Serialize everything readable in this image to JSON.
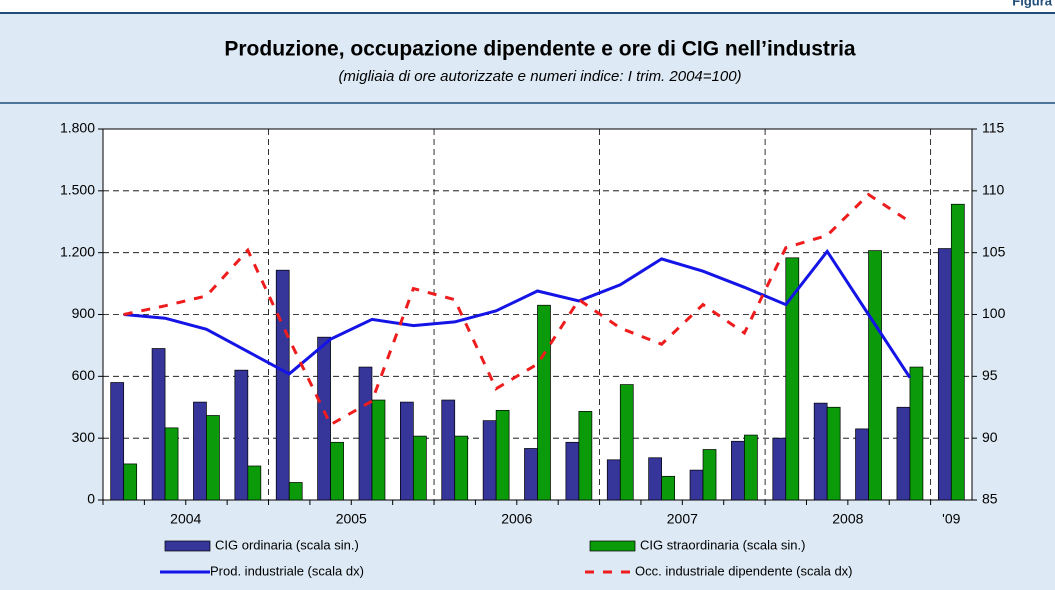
{
  "figure_label": "Figura",
  "chart_data": {
    "type": "bar_line",
    "title": "Produzione, occupazione dipendente e ore di CIG nell’industria",
    "subtitle": "(migliaia di ore autorizzate e numeri indice: I trim. 2004=100)",
    "categories": [
      null,
      null,
      null,
      null,
      null,
      null,
      null,
      null,
      null,
      null,
      null,
      null,
      null,
      null,
      null,
      null,
      null,
      null,
      null,
      null,
      null
    ],
    "groups": [
      "2004",
      "2005",
      "2006",
      "2007",
      "2008",
      "'09"
    ],
    "ylim": [
      0,
      1800
    ],
    "yticks": [
      0,
      300,
      600,
      900,
      {
        "value": 1200,
        "label": "1.200"
      },
      {
        "value": 1500,
        "label": "1.500"
      },
      {
        "value": 1800,
        "label": "1.800"
      }
    ],
    "y2lim": [
      85,
      115
    ],
    "y2ticks": [
      85,
      90,
      95,
      100,
      105,
      110,
      115
    ],
    "grid": true,
    "series": [
      {
        "name": "CIG ordinaria (scala sin.)",
        "kind": "bar",
        "color": "#35359a",
        "values": [
          570,
          735,
          475,
          630,
          1115,
          790,
          645,
          475,
          485,
          385,
          250,
          280,
          195,
          205,
          145,
          285,
          300,
          470,
          345,
          450,
          1220
        ]
      },
      {
        "name": "CIG straordinaria (scala sin.)",
        "kind": "bar",
        "color": "#0a9a0a",
        "values": [
          175,
          350,
          410,
          165,
          85,
          280,
          485,
          310,
          310,
          435,
          945,
          430,
          560,
          115,
          245,
          315,
          1175,
          450,
          1210,
          645,
          1435
        ]
      },
      {
        "name": "Prod. industriale (scala dx)",
        "kind": "line",
        "axis": "y2",
        "color": "#1414e6",
        "values": [
          100,
          99.7,
          98.8,
          97,
          95.2,
          98,
          99.6,
          99.1,
          99.4,
          100.3,
          101.9,
          101.1,
          102.4,
          104.5,
          103.5,
          102.2,
          100.8,
          105.1,
          100,
          94.9,
          null
        ]
      },
      {
        "name": "Occ. industriale dipendente (scala dx)",
        "kind": "line",
        "dashed": true,
        "axis": "y2",
        "color": "#ee1c1c",
        "values": [
          100,
          100.7,
          101.5,
          105.2,
          98,
          91.1,
          93,
          102.1,
          101.2,
          94,
          96,
          101.2,
          98.9,
          97.6,
          100.8,
          98.5,
          105.4,
          106.4,
          109.7,
          107.5,
          null
        ]
      }
    ]
  }
}
